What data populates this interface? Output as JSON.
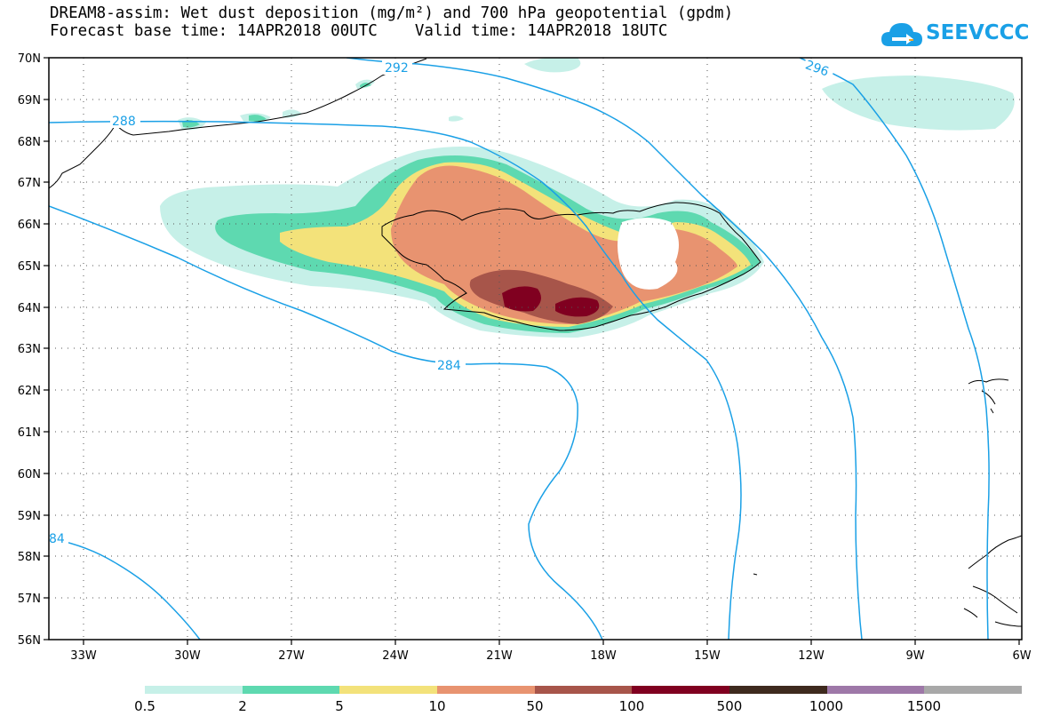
{
  "header": {
    "title_line1": "DREAM8-assim: Wet dust deposition (mg/m²) and 700 hPa geopotential (gpdm)",
    "title_line2": "Forecast base time: 14APR2018 00UTC    Valid time: 14APR2018 18UTC"
  },
  "logo": {
    "text": "SEEVCCC",
    "icon": "cloud-icon",
    "color": "#1aa0e6"
  },
  "axes": {
    "lat_labels": [
      "70N",
      "69N",
      "68N",
      "67N",
      "66N",
      "65N",
      "64N",
      "63N",
      "62N",
      "61N",
      "60N",
      "59N",
      "58N",
      "57N",
      "56N"
    ],
    "lon_labels": [
      "33W",
      "30W",
      "27W",
      "24W",
      "21W",
      "18W",
      "15W",
      "12W",
      "9W",
      "6W"
    ]
  },
  "contour_labels": [
    "292",
    "296",
    "288",
    "284",
    "84"
  ],
  "legend": {
    "labels": [
      "0.5",
      "2",
      "5",
      "10",
      "50",
      "100",
      "500",
      "1000",
      "1500"
    ],
    "colors": [
      "#c6f0e8",
      "#5ed9b0",
      "#f3e27a",
      "#e89370",
      "#a7554a",
      "#800020",
      "#3e2a1e",
      "#9e78a8",
      "#a8a8a8"
    ]
  }
}
